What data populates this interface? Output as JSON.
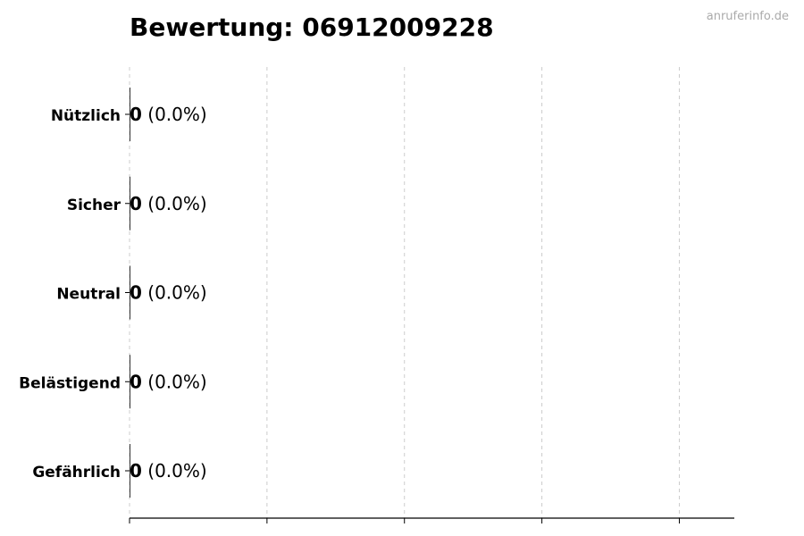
{
  "watermark": "anruferinfo.de",
  "chart_data": {
    "type": "bar",
    "orientation": "horizontal",
    "title": "Bewertung: 06912009228",
    "categories": [
      "Nützlich",
      "Sicher",
      "Neutral",
      "Belästigend",
      "Gefährlich"
    ],
    "values": [
      0,
      0,
      0,
      0,
      0
    ],
    "percent_labels": [
      "(0.0%)",
      "(0.0%)",
      "(0.0%)",
      "(0.0%)",
      "(0.0%)"
    ],
    "xlim": [
      0,
      4.4
    ],
    "xticks": [
      0,
      1,
      2,
      3,
      4
    ],
    "xtick_labels_shown": false,
    "grid": "x-dashed",
    "colors": {
      "bar": "#333333",
      "grid": "#cccccc",
      "watermark": "#aaaaaa"
    }
  }
}
